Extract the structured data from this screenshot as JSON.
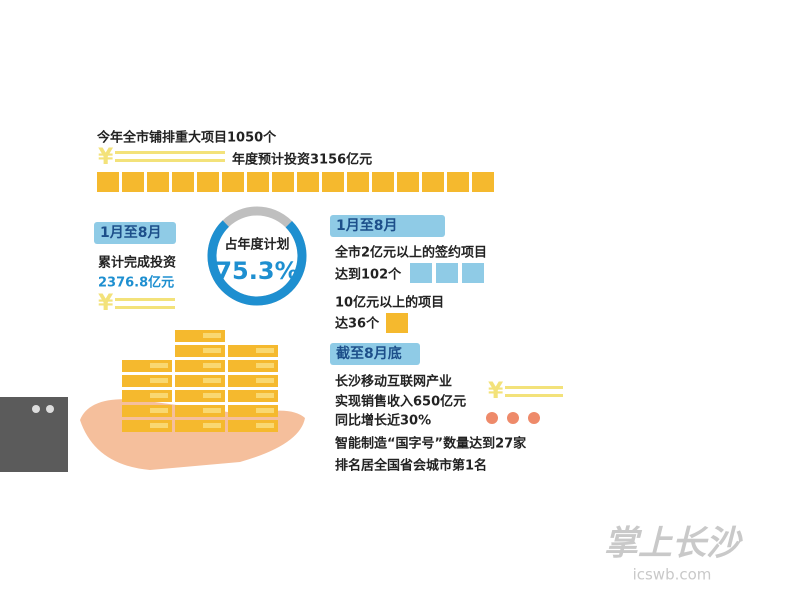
{
  "header": {
    "line1": "今年全市铺排重大项目1050个",
    "line2": "年度预计投资3156亿元"
  },
  "left": {
    "period": "1月至8月",
    "line1": "累计完成投资",
    "line2": "2376.8亿元"
  },
  "gauge": {
    "label": "占年度计划",
    "value": 75.3,
    "value_label": "75.3%"
  },
  "right": {
    "period1": "1月至8月",
    "items1": [
      "全市2亿元以上的签约项目",
      "达到102个",
      "10亿元以上的项目",
      "达36个"
    ],
    "period2": "截至8月底",
    "items2": [
      "长沙移动互联网产业",
      "实现销售收入650亿元",
      "同比增长近30%",
      "智能制造“国字号”数量达到27家",
      "排名居全国省会城市第1名"
    ]
  },
  "watermark": {
    "brand": "掌上长沙",
    "site": "icswb.com"
  }
}
